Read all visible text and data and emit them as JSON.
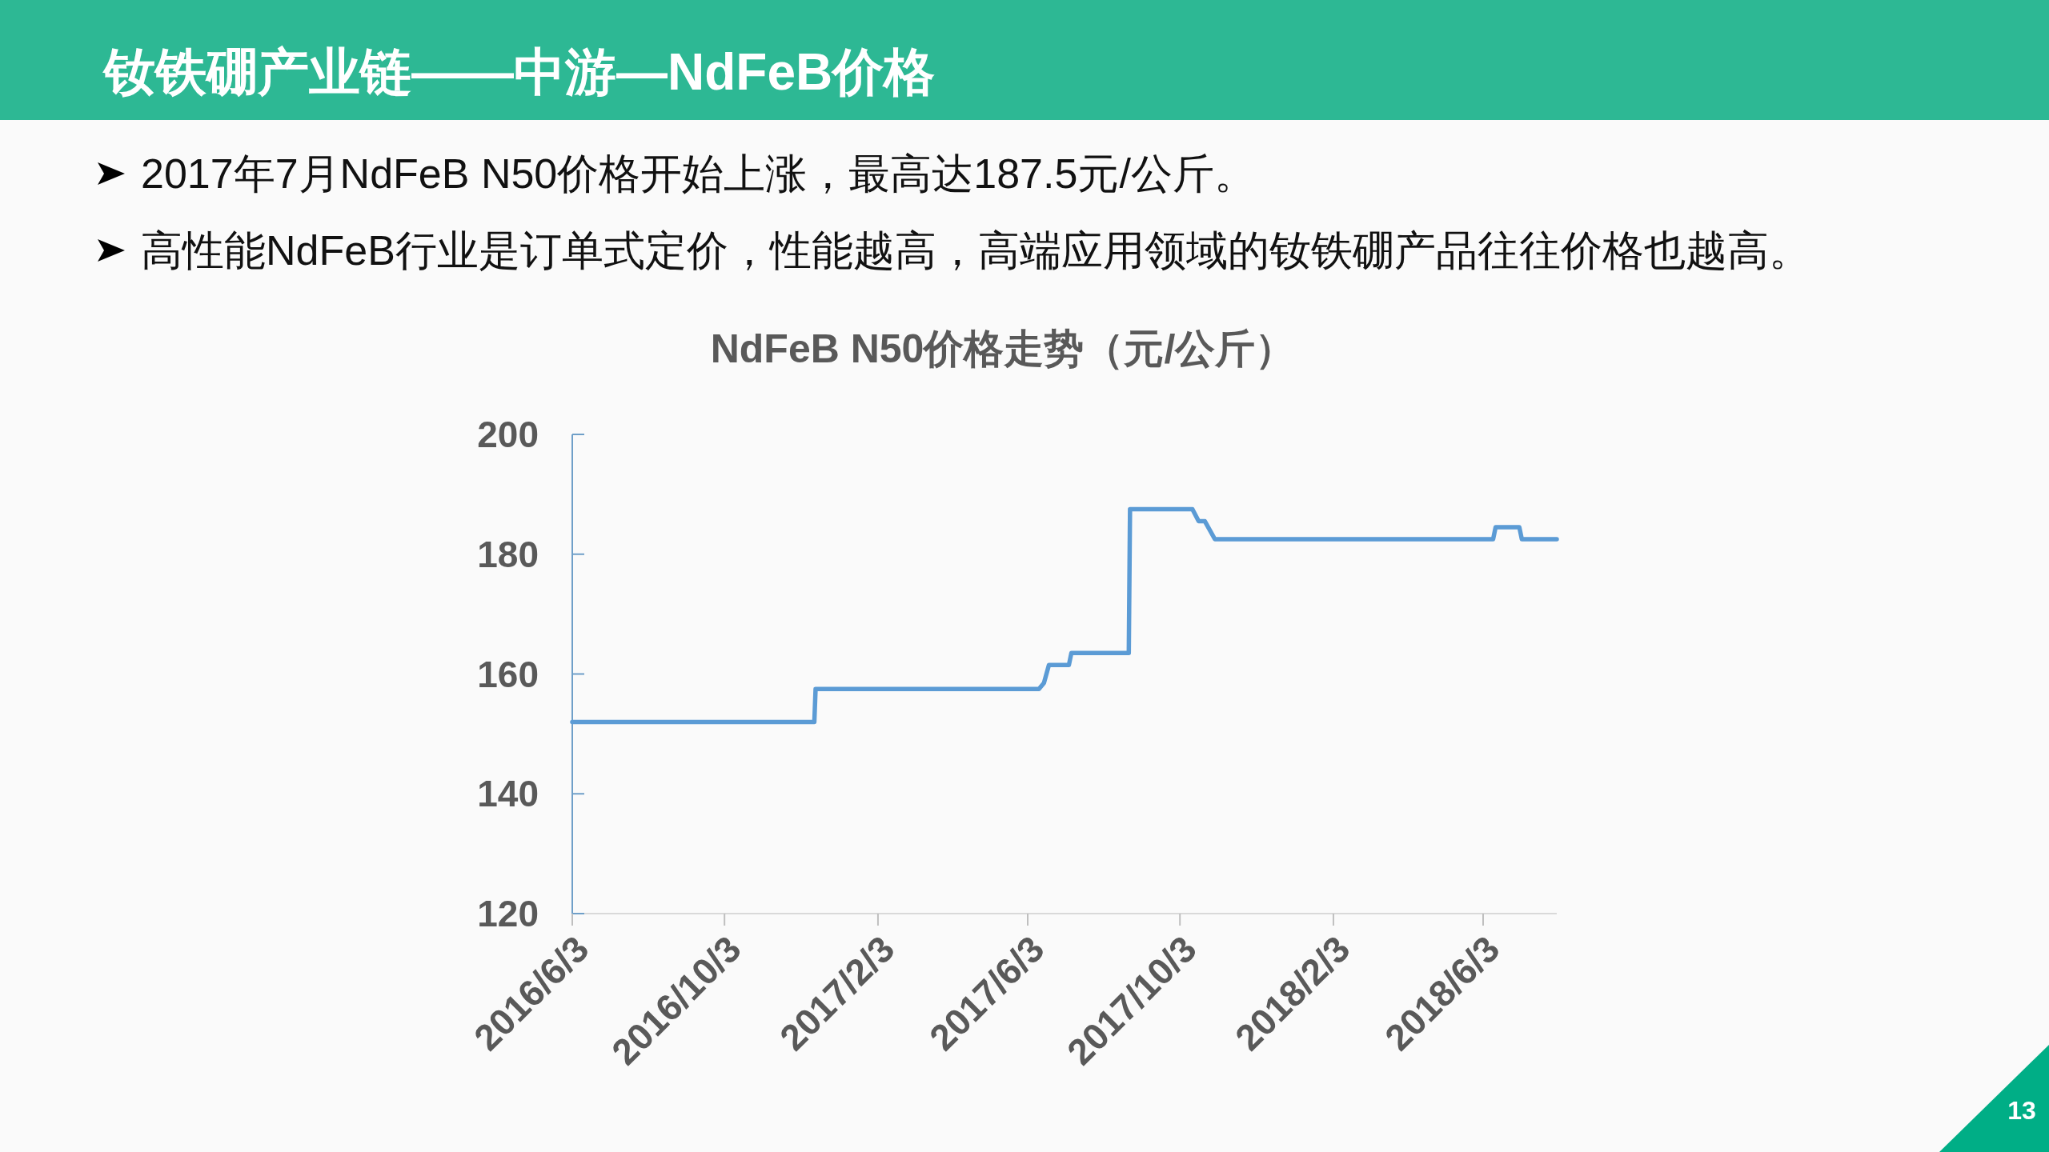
{
  "chart_data": {
    "type": "line",
    "title": "钕铁硼产业链——中游—NdFeB价格",
    "subtitle": "NdFeB N50价格走势（元/公斤）",
    "annotations": [
      "2017年7月NdFeB N50价格开始上涨，最高达187.5元/公斤。",
      "高性能NdFeB行业是订单式定价，性能越高，高端应用领域的钕铁硼产品往往价格也越高。",
      "13"
    ],
    "x": [
      "2016-06-03",
      "2016-12-14",
      "2016-12-15",
      "2017-06-12",
      "2017-06-16",
      "2017-06-20",
      "2017-07-06",
      "2017-07-08",
      "2017-08-23",
      "2017-08-24",
      "2017-10-13",
      "2017-10-18",
      "2017-10-23",
      "2017-10-31",
      "2018-06-11",
      "2018-06-13",
      "2018-07-02",
      "2018-07-04",
      "2018-08-01"
    ],
    "series": [
      {
        "color": "#5b9bd5",
        "values": [
          152,
          152,
          157.5,
          157.5,
          158.5,
          161.5,
          161.5,
          163.5,
          163.5,
          187.5,
          187.5,
          185.5,
          185.5,
          182.5,
          182.5,
          184.5,
          184.5,
          182.5,
          182.5
        ]
      }
    ],
    "xlim": [
      "2016-06-03",
      "2018-08-01"
    ],
    "xticks": [
      {
        "value": "2016-06-03",
        "label": "2016/6/3"
      },
      {
        "value": "2016-10-03",
        "label": "2016/10/3"
      },
      {
        "value": "2017-02-03",
        "label": "2017/2/3"
      },
      {
        "value": "2017-06-03",
        "label": "2017/6/3"
      },
      {
        "value": "2017-10-03",
        "label": "2017/10/3"
      },
      {
        "value": "2018-02-03",
        "label": "2018/2/3"
      },
      {
        "value": "2018-06-03",
        "label": "2018/6/3"
      }
    ],
    "ylim": [
      120,
      200
    ],
    "yticks": [
      120,
      140,
      160,
      180,
      200
    ],
    "line_style": "solid"
  }
}
